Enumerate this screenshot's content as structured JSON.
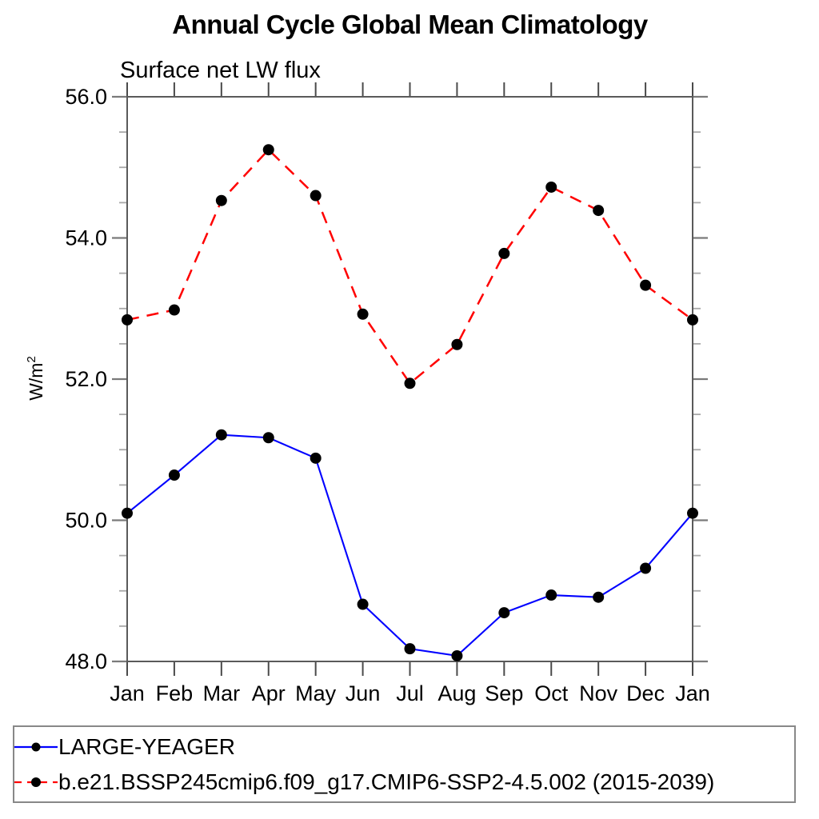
{
  "header": {
    "title": "Annual Cycle Global Mean Climatology",
    "subtitle": "Surface net LW flux"
  },
  "chart_data": {
    "type": "line",
    "title": "Annual Cycle Global Mean Climatology",
    "subtitle": "Surface net LW flux",
    "ylabel_base": "W/m",
    "ylabel_exponent": "2",
    "categories": [
      "Jan",
      "Feb",
      "Mar",
      "Apr",
      "May",
      "Jun",
      "Jul",
      "Aug",
      "Sep",
      "Oct",
      "Nov",
      "Dec",
      "Jan"
    ],
    "ylim": [
      48.0,
      56.0
    ],
    "ytick_values": [
      48.0,
      50.0,
      52.0,
      54.0,
      56.0
    ],
    "ytick_labels": [
      "48.0",
      "50.0",
      "52.0",
      "54.0",
      "56.0"
    ],
    "minor_tick_step": 0.5,
    "grid": false,
    "legend_position": "bottom-left-box",
    "series": [
      {
        "name": "LARGE-YEAGER",
        "color": "#0000ff",
        "line_style": "solid",
        "marker": "filled-circle",
        "marker_color": "#000000",
        "values": [
          50.1,
          50.64,
          51.21,
          51.17,
          50.88,
          48.81,
          48.18,
          48.08,
          48.69,
          48.94,
          48.91,
          49.32,
          50.1
        ]
      },
      {
        "name": "b.e21.BSSP245cmip6.f09_g17.CMIP6-SSP2-4.5.002 (2015-2039)",
        "color": "#ff0000",
        "line_style": "dashed",
        "marker": "filled-circle",
        "marker_color": "#000000",
        "values": [
          52.84,
          52.98,
          54.53,
          55.25,
          54.6,
          52.92,
          51.94,
          52.49,
          53.78,
          54.72,
          54.39,
          53.33,
          52.84
        ]
      }
    ],
    "colors": {
      "background": "#ffffff",
      "axis_frame": "#5a5a5a",
      "month_tick": "#4a4a4a",
      "major_tick": "#7a7a7a",
      "minor_tick": "#a8a8a8",
      "tick_label": "#000000",
      "legend_border": "#888888"
    }
  }
}
